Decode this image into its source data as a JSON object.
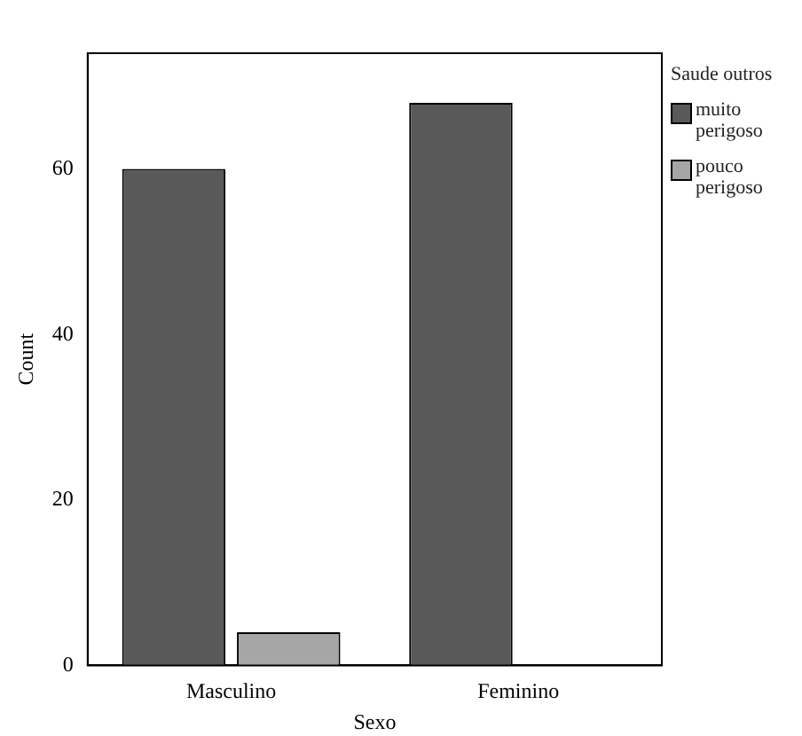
{
  "chart_data": {
    "type": "bar",
    "xlabel": "Sexo",
    "ylabel": "Count",
    "legend_title": "Saude outros",
    "categories": [
      "Masculino",
      "Feminino"
    ],
    "series": [
      {
        "name": "muito perigoso",
        "color": "#595959",
        "values": [
          60,
          68
        ]
      },
      {
        "name": "pouco perigoso",
        "color": "#a6a6a6",
        "values": [
          4,
          0
        ]
      }
    ],
    "ylim": [
      0,
      74
    ],
    "yticks": [
      0,
      20,
      40,
      60
    ],
    "grid": false,
    "legend": "right"
  }
}
